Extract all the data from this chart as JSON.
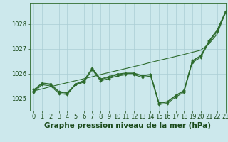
{
  "background_color": "#cce8ec",
  "grid_color": "#aacdd4",
  "line_color": "#2d6b2d",
  "ylabel_ticks": [
    1025,
    1026,
    1027,
    1028
  ],
  "xlim": [
    -0.5,
    23
  ],
  "ylim": [
    1024.5,
    1028.85
  ],
  "xlabel": "Graphe pression niveau de la mer (hPa)",
  "series1": [
    1025.3,
    1025.6,
    1025.55,
    1025.25,
    1025.2,
    1025.55,
    1025.7,
    1026.2,
    1025.75,
    1025.85,
    1025.95,
    1026.0,
    1026.0,
    1025.9,
    1025.95,
    1024.8,
    1024.85,
    1025.1,
    1025.3,
    1026.5,
    1026.7,
    1027.3,
    1027.75,
    1028.5
  ],
  "series2": [
    1025.25,
    1025.55,
    1025.5,
    1025.2,
    1025.15,
    1025.55,
    1025.65,
    1026.15,
    1025.7,
    1025.8,
    1025.9,
    1025.95,
    1025.95,
    1025.85,
    1025.9,
    1024.75,
    1024.8,
    1025.05,
    1025.25,
    1026.45,
    1026.65,
    1027.25,
    1027.7,
    1028.45
  ],
  "series3": [
    1025.35,
    1025.62,
    1025.58,
    1025.28,
    1025.22,
    1025.58,
    1025.72,
    1026.22,
    1025.78,
    1025.88,
    1025.98,
    1026.02,
    1026.02,
    1025.92,
    1025.97,
    1024.82,
    1024.87,
    1025.12,
    1025.32,
    1026.52,
    1026.72,
    1027.32,
    1027.77,
    1028.52
  ],
  "smooth": [
    1025.3,
    1025.38,
    1025.47,
    1025.55,
    1025.63,
    1025.71,
    1025.79,
    1025.87,
    1025.96,
    1026.04,
    1026.12,
    1026.2,
    1026.28,
    1026.36,
    1026.45,
    1026.53,
    1026.61,
    1026.69,
    1026.77,
    1026.86,
    1026.94,
    1027.2,
    1027.6,
    1028.5
  ],
  "font_color": "#1a4a1a",
  "tick_fontsize": 6,
  "label_fontsize": 7.5
}
